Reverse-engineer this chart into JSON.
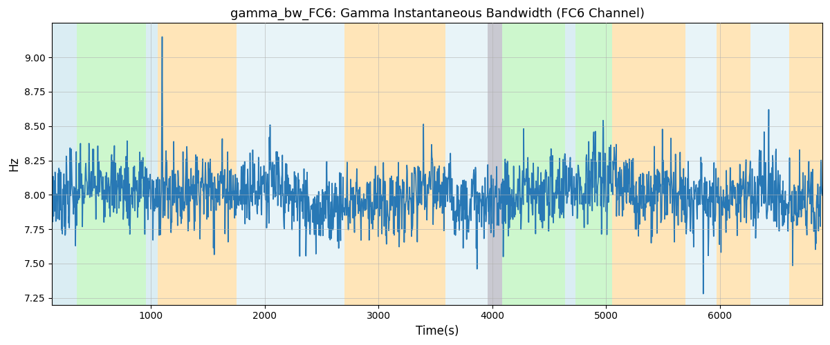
{
  "title": "gamma_bw_FC6: Gamma Instantaneous Bandwidth (FC6 Channel)",
  "xlabel": "Time(s)",
  "ylabel": "Hz",
  "xlim": [
    130,
    6900
  ],
  "ylim": [
    7.2,
    9.25
  ],
  "yticks": [
    7.25,
    7.5,
    7.75,
    8.0,
    8.25,
    8.5,
    8.75,
    9.0
  ],
  "line_color": "#2878B5",
  "line_width": 1.2,
  "title_fontsize": 13,
  "n_points": 2000,
  "seed": 7,
  "colored_bands": [
    {
      "xmin": 130,
      "xmax": 345,
      "color": "#ADD8E6",
      "alpha": 0.45
    },
    {
      "xmin": 345,
      "xmax": 955,
      "color": "#90EE90",
      "alpha": 0.45
    },
    {
      "xmin": 955,
      "xmax": 1060,
      "color": "#ADD8E6",
      "alpha": 0.45
    },
    {
      "xmin": 1060,
      "xmax": 1750,
      "color": "#FFA500",
      "alpha": 0.28
    },
    {
      "xmin": 1750,
      "xmax": 2700,
      "color": "#ADD8E6",
      "alpha": 0.28
    },
    {
      "xmin": 2700,
      "xmax": 3590,
      "color": "#FFA500",
      "alpha": 0.28
    },
    {
      "xmin": 3590,
      "xmax": 3960,
      "color": "#ADD8E6",
      "alpha": 0.28
    },
    {
      "xmin": 3960,
      "xmax": 4085,
      "color": "#888899",
      "alpha": 0.45
    },
    {
      "xmin": 4085,
      "xmax": 4640,
      "color": "#90EE90",
      "alpha": 0.45
    },
    {
      "xmin": 4640,
      "xmax": 4730,
      "color": "#ADD8E6",
      "alpha": 0.45
    },
    {
      "xmin": 4730,
      "xmax": 5050,
      "color": "#90EE90",
      "alpha": 0.45
    },
    {
      "xmin": 5050,
      "xmax": 5700,
      "color": "#FFA500",
      "alpha": 0.28
    },
    {
      "xmin": 5700,
      "xmax": 5970,
      "color": "#ADD8E6",
      "alpha": 0.28
    },
    {
      "xmin": 5970,
      "xmax": 6270,
      "color": "#FFA500",
      "alpha": 0.28
    },
    {
      "xmin": 6270,
      "xmax": 6610,
      "color": "#ADD8E6",
      "alpha": 0.28
    },
    {
      "xmin": 6610,
      "xmax": 6900,
      "color": "#FFA500",
      "alpha": 0.28
    }
  ],
  "signal_base": 8.0,
  "signal_std": 0.13,
  "spike_count": 60,
  "spike_scale": 0.45
}
